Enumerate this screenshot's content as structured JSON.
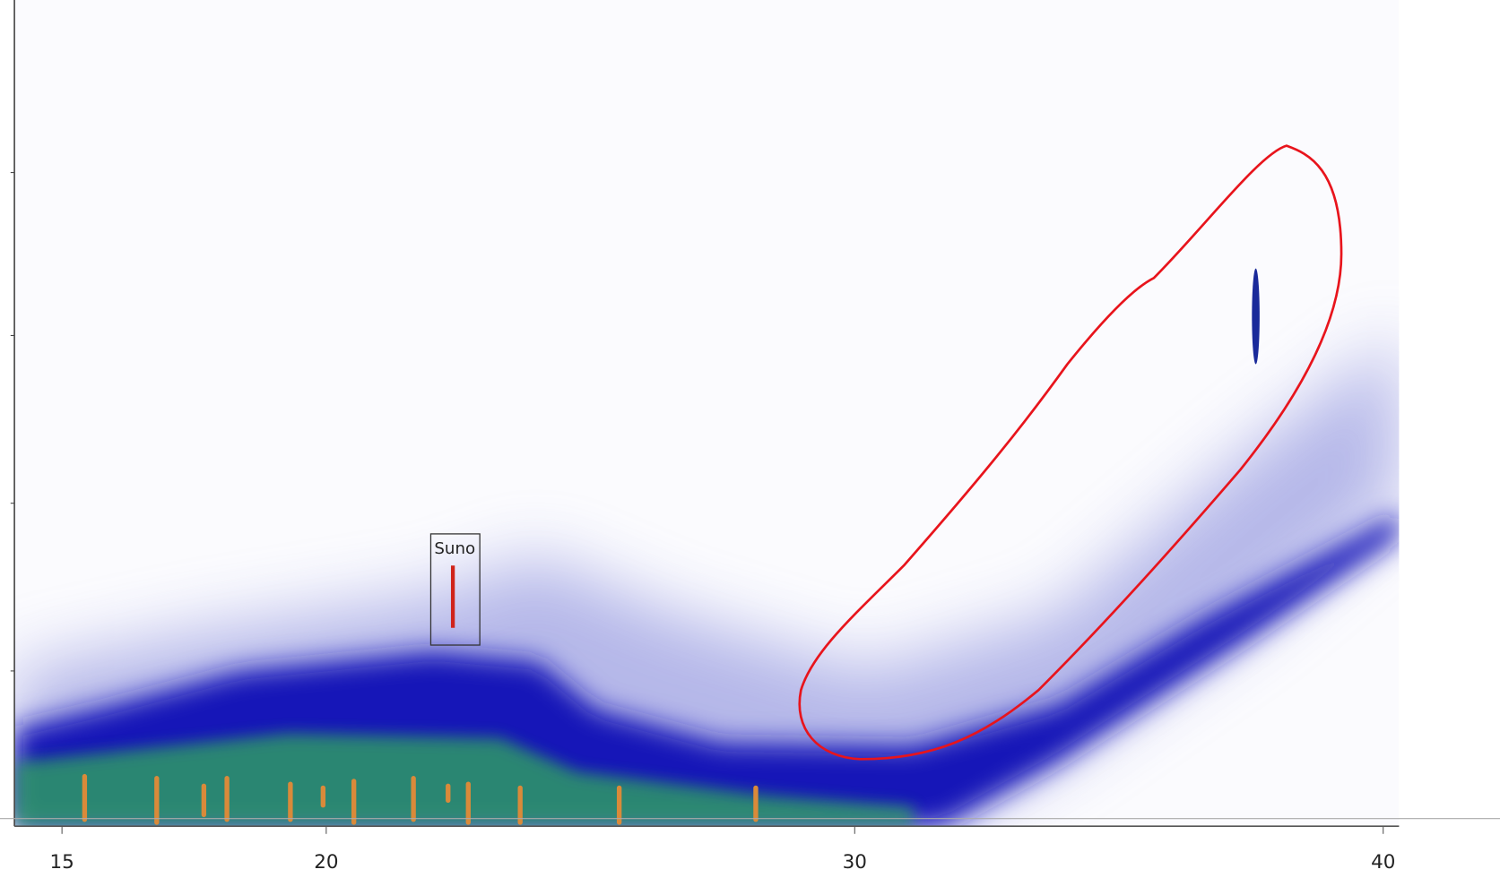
{
  "chart_data": {
    "type": "heatmap",
    "annotations": [
      "Suno"
    ],
    "xlim": [
      14.1,
      40.3
    ],
    "xticks": [
      15,
      20,
      30,
      40
    ]
  }
}
